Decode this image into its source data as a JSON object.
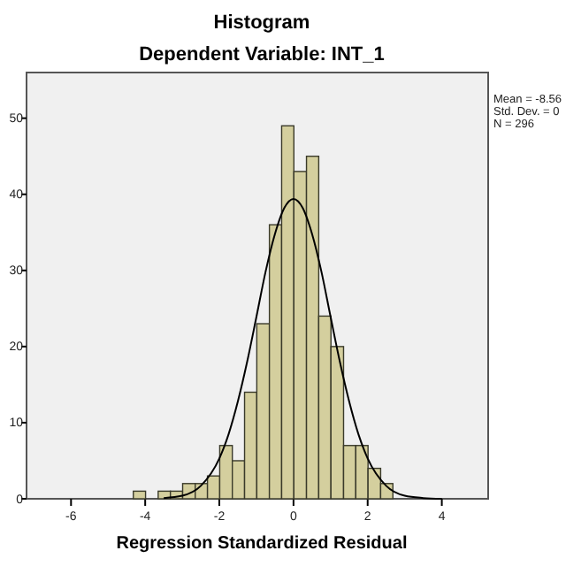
{
  "chart_data": {
    "type": "histogram",
    "title": "Histogram",
    "subtitle": "Dependent Variable: INT_1",
    "xlabel": "Regression Standardized Residual",
    "bins": [
      -4.32,
      -3.99,
      -3.65,
      -3.32,
      -2.99,
      -2.65,
      -2.32,
      -1.99,
      -1.65,
      -1.32,
      -0.99,
      -0.65,
      -0.32,
      0.01,
      0.35,
      0.68,
      1.01,
      1.35,
      1.68,
      2.01,
      2.35,
      2.68
    ],
    "values": [
      1,
      0,
      1,
      1,
      2,
      2,
      3,
      7,
      5,
      14,
      23,
      36,
      49,
      43,
      45,
      24,
      20,
      7,
      7,
      4,
      2
    ],
    "color": "#d4cf9e",
    "series": [
      {
        "type": "line",
        "color": "#000000",
        "x": [
          -3.5,
          -3,
          -2.5,
          -2,
          -1.75,
          -1.5,
          -1.25,
          -1,
          -0.75,
          -0.5,
          -0.25,
          0,
          0.25,
          0.5,
          0.75,
          1,
          1.25,
          1.5,
          1.75,
          2,
          2.5,
          3,
          3.5,
          4
        ],
        "values": [
          0.1,
          0.4,
          1.7,
          5.3,
          8.5,
          12.8,
          18,
          23.9,
          29.9,
          34.8,
          38.2,
          39.4,
          38.2,
          34.8,
          29.9,
          23.9,
          18,
          12.8,
          8.5,
          5.3,
          1.7,
          0.4,
          0.1,
          0
        ]
      }
    ],
    "xlim": [
      -7.2,
      5.25
    ],
    "ylim": [
      0,
      56
    ],
    "xticks": [
      -6,
      -4,
      -2,
      0,
      2,
      4
    ],
    "yticks": [
      0,
      10,
      20,
      30,
      40,
      50
    ],
    "grid": false,
    "annotations": [
      "Mean = -8.56",
      "Std. Dev. = 0",
      "N = 296"
    ]
  }
}
